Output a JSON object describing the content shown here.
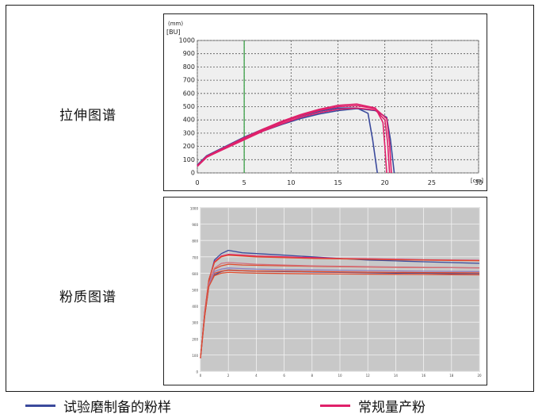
{
  "labels": {
    "extensogram": "拉伸图谱",
    "farinogram": "粉质图谱"
  },
  "legend": [
    {
      "name": "试验磨制备的粉样",
      "color": "#3b4a9c"
    },
    {
      "name": "常规量产粉",
      "color": "#e0206a"
    }
  ],
  "chart_data": [
    {
      "type": "line",
      "name": "extensogram",
      "ylabel_top": "(mm)",
      "ylabel": "[BU]",
      "xlabel": "[cm]",
      "xlim": [
        0,
        30
      ],
      "ylim": [
        0,
        1000
      ],
      "xticks": [
        0,
        5,
        10,
        15,
        20,
        25,
        30
      ],
      "yticks": [
        0,
        100,
        200,
        300,
        400,
        500,
        600,
        700,
        800,
        900,
        1000
      ],
      "marker_x": 5,
      "grid": true,
      "series": [
        {
          "color": "#3b4a9c",
          "x": [
            0,
            1,
            3,
            5,
            7,
            9,
            11,
            13,
            15,
            17,
            18.2,
            18.7,
            19.2
          ],
          "y": [
            60,
            130,
            200,
            270,
            330,
            385,
            430,
            465,
            490,
            490,
            450,
            250,
            0
          ]
        },
        {
          "color": "#3b4a9c",
          "x": [
            0,
            1,
            3,
            5,
            7,
            9,
            11,
            13,
            15,
            17,
            19,
            20.2,
            20.6,
            21.0
          ],
          "y": [
            50,
            120,
            190,
            255,
            315,
            365,
            410,
            445,
            470,
            485,
            470,
            420,
            250,
            0
          ]
        },
        {
          "color": "#e0206a",
          "x": [
            0,
            1,
            3,
            5,
            7,
            9,
            11,
            13,
            15,
            17,
            19,
            19.8,
            20.0,
            20.2
          ],
          "y": [
            55,
            125,
            195,
            265,
            330,
            390,
            440,
            480,
            510,
            520,
            490,
            380,
            200,
            0
          ]
        },
        {
          "color": "#e0206a",
          "x": [
            0,
            1,
            3,
            5,
            7,
            9,
            11,
            13,
            15,
            17,
            19,
            20.0,
            20.3,
            20.5
          ],
          "y": [
            50,
            120,
            185,
            250,
            315,
            370,
            420,
            455,
            480,
            490,
            475,
            400,
            230,
            0
          ]
        },
        {
          "color": "#e0206a",
          "x": [
            0,
            1,
            3,
            5,
            7,
            9,
            11,
            13,
            15,
            17,
            19,
            20.2,
            20.5,
            20.7
          ],
          "y": [
            50,
            118,
            188,
            258,
            322,
            380,
            432,
            472,
            500,
            508,
            485,
            410,
            230,
            0
          ]
        }
      ]
    },
    {
      "type": "line",
      "name": "farinogram",
      "xlim": [
        0,
        20
      ],
      "ylim": [
        0,
        1000
      ],
      "xticks": [
        0,
        2,
        4,
        6,
        8,
        10,
        12,
        14,
        16,
        18,
        20
      ],
      "yticks": [
        0,
        100,
        200,
        300,
        400,
        500,
        600,
        700,
        800,
        900,
        1000
      ],
      "grid": true,
      "series": [
        {
          "color": "#3b4a9c",
          "x": [
            0,
            0.3,
            0.6,
            1,
            1.5,
            2,
            3,
            4,
            6,
            8,
            10,
            12,
            14,
            16,
            18,
            20
          ],
          "y": [
            80,
            350,
            550,
            680,
            720,
            740,
            725,
            720,
            710,
            700,
            690,
            680,
            675,
            670,
            665,
            660
          ]
        },
        {
          "color": "#3b4a9c",
          "x": [
            0,
            0.3,
            0.6,
            1,
            1.5,
            2,
            3,
            4,
            6,
            8,
            10,
            12,
            14,
            16,
            18,
            20
          ],
          "y": [
            80,
            340,
            520,
            590,
            610,
            620,
            615,
            612,
            610,
            608,
            605,
            603,
            600,
            600,
            598,
            598
          ]
        },
        {
          "color": "#e0206a",
          "x": [
            0,
            0.3,
            0.6,
            1,
            1.5,
            2,
            3,
            4,
            6,
            8,
            10,
            12,
            14,
            16,
            18,
            20
          ],
          "y": [
            80,
            360,
            560,
            670,
            705,
            715,
            710,
            705,
            700,
            695,
            690,
            688,
            685,
            682,
            680,
            678
          ]
        },
        {
          "color": "#e04a2a",
          "x": [
            0,
            0.3,
            0.6,
            1,
            1.5,
            2,
            3,
            4,
            6,
            8,
            10,
            12,
            14,
            16,
            18,
            20
          ],
          "y": [
            80,
            355,
            560,
            665,
            700,
            710,
            705,
            700,
            695,
            690,
            688,
            685,
            682,
            680,
            678,
            676
          ]
        },
        {
          "color": "#e04a2a",
          "x": [
            0,
            0.3,
            0.6,
            1,
            1.5,
            2,
            3,
            4,
            6,
            8,
            10,
            12,
            14,
            16,
            18,
            20
          ],
          "y": [
            80,
            350,
            540,
            625,
            645,
            655,
            650,
            648,
            645,
            642,
            640,
            638,
            636,
            635,
            634,
            633
          ]
        },
        {
          "color": "#e04a2a",
          "x": [
            0,
            0.3,
            0.6,
            1,
            1.5,
            2,
            3,
            4,
            6,
            8,
            10,
            12,
            14,
            16,
            18,
            20
          ],
          "y": [
            80,
            345,
            530,
            600,
            612,
            618,
            615,
            613,
            612,
            610,
            608,
            606,
            605,
            604,
            603,
            602
          ]
        },
        {
          "color": "#d07080",
          "x": [
            0,
            0.3,
            0.6,
            1,
            1.5,
            2,
            3,
            4,
            6,
            8,
            10,
            12,
            14,
            16,
            18,
            20
          ],
          "y": [
            80,
            345,
            535,
            630,
            660,
            665,
            660,
            655,
            650,
            645,
            642,
            640,
            638,
            636,
            634,
            632
          ]
        },
        {
          "color": "#9080c0",
          "x": [
            0,
            0.3,
            0.6,
            1,
            1.5,
            2,
            3,
            4,
            6,
            8,
            10,
            12,
            14,
            16,
            18,
            20
          ],
          "y": [
            80,
            340,
            525,
            610,
            625,
            632,
            628,
            625,
            622,
            620,
            618,
            616,
            614,
            612,
            611,
            610
          ]
        },
        {
          "color": "#e04a2a",
          "x": [
            0,
            0.3,
            0.6,
            1,
            1.5,
            2,
            3,
            4,
            6,
            8,
            10,
            12,
            14,
            16,
            18,
            20
          ],
          "y": [
            80,
            335,
            520,
            585,
            600,
            605,
            602,
            600,
            598,
            596,
            595,
            594,
            593,
            592,
            591,
            590
          ]
        }
      ]
    }
  ]
}
